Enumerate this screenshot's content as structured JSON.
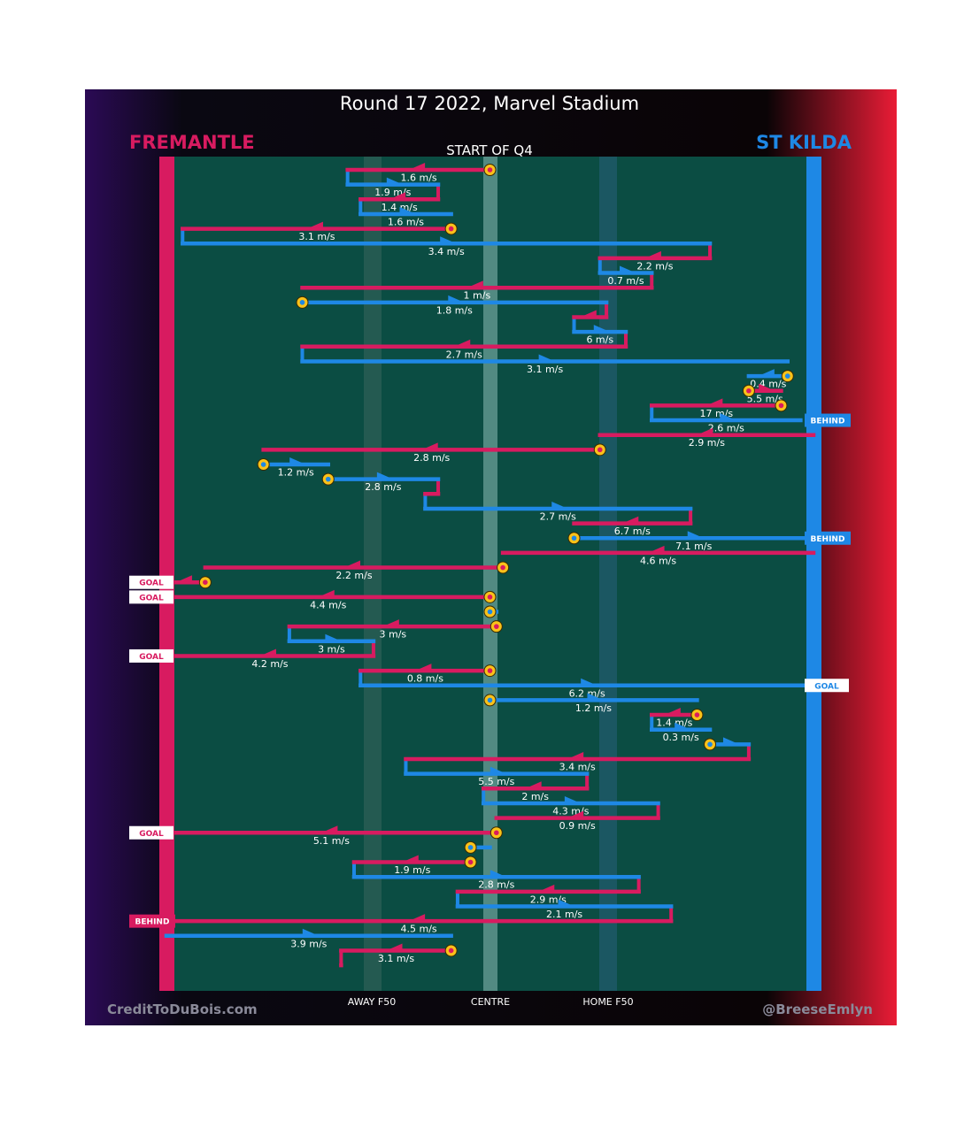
{
  "chart_data": {
    "type": "line",
    "title": "Round 17 2022, Marvel Stadium",
    "subtitle": "START OF Q4",
    "teams": {
      "left": "FREMANTLE",
      "right": "ST KILDA"
    },
    "axis_labels": [
      "AWAY F50",
      "CENTRE",
      "HOME F50"
    ],
    "credits": {
      "left": "CreditToDuBois.com",
      "right": "@BreeseEmlyn"
    },
    "colors": {
      "fremantle": "#d81b60",
      "st_kilda": "#1e88e5",
      "field": "#0b4d43",
      "stoppage": "#f9c21a"
    },
    "x_scale": "position along ground: 0 = Fremantle goal line, 0.5 = centre, 1 = St Kilda goal line",
    "chains": [
      {
        "team": "F",
        "from": 0.5,
        "to": 0.28,
        "speed": "1.6 m/s",
        "start": "stoppage"
      },
      {
        "team": "S",
        "from": 0.28,
        "to": 0.42,
        "speed": "1.9 m/s"
      },
      {
        "team": "F",
        "from": 0.42,
        "to": 0.3,
        "speed": "1.4 m/s"
      },
      {
        "team": "S",
        "from": 0.3,
        "to": 0.44,
        "speed": "1.6 m/s"
      },
      {
        "team": "F",
        "from": 0.44,
        "to": 0.025,
        "speed": "3.1 m/s",
        "start": "stoppage"
      },
      {
        "team": "S",
        "from": 0.025,
        "to": 0.84,
        "speed": "3.4 m/s"
      },
      {
        "team": "F",
        "from": 0.84,
        "to": 0.67,
        "speed": "2.2 m/s"
      },
      {
        "team": "S",
        "from": 0.67,
        "to": 0.75,
        "speed": "0.7 m/s"
      },
      {
        "team": "F",
        "from": 0.75,
        "to": 0.21,
        "speed": "1 m/s"
      },
      {
        "team": "S",
        "from": 0.21,
        "to": 0.68,
        "speed": "1.8 m/s",
        "start": "stoppage"
      },
      {
        "team": "F",
        "from": 0.68,
        "to": 0.63,
        "speed": ""
      },
      {
        "team": "S",
        "from": 0.63,
        "to": 0.71,
        "speed": "6 m/s"
      },
      {
        "team": "F",
        "from": 0.71,
        "to": 0.21,
        "speed": "2.7 m/s"
      },
      {
        "team": "S",
        "from": 0.21,
        "to": 0.96,
        "speed": "3.1 m/s"
      },
      {
        "team": "S",
        "from": 0.96,
        "to": 0.9,
        "speed": "0.4 m/s",
        "start": "stoppage"
      },
      {
        "team": "F",
        "from": 0.9,
        "to": 0.95,
        "speed": "5.5 m/s",
        "start": "stoppage"
      },
      {
        "team": "F",
        "from": 0.95,
        "to": 0.75,
        "speed": "17 m/s",
        "start": "stoppage"
      },
      {
        "team": "S",
        "from": 0.75,
        "to": 0.98,
        "speed": "2.6 m/s",
        "result": "BEHIND"
      },
      {
        "team": "F",
        "from": 1.0,
        "to": 0.67,
        "speed": "2.9 m/s"
      },
      {
        "team": "F",
        "from": 0.67,
        "to": 0.15,
        "speed": "2.8 m/s",
        "start": "stoppage"
      },
      {
        "team": "S",
        "from": 0.15,
        "to": 0.25,
        "speed": "1.2 m/s",
        "start": "stoppage"
      },
      {
        "team": "S",
        "from": 0.25,
        "to": 0.42,
        "speed": "2.8 m/s",
        "start": "stoppage"
      },
      {
        "team": "F",
        "from": 0.42,
        "to": 0.4,
        "speed": ""
      },
      {
        "team": "S",
        "from": 0.4,
        "to": 0.81,
        "speed": "2.7 m/s"
      },
      {
        "team": "F",
        "from": 0.81,
        "to": 0.63,
        "speed": "6.7 m/s"
      },
      {
        "team": "S",
        "from": 0.63,
        "to": 1.0,
        "speed": "7.1 m/s",
        "start": "stoppage",
        "result": "BEHIND"
      },
      {
        "team": "F",
        "from": 1.0,
        "to": 0.52,
        "speed": "4.6 m/s"
      },
      {
        "team": "F",
        "from": 0.52,
        "to": 0.06,
        "speed": "2.2 m/s",
        "start": "stoppage"
      },
      {
        "team": "F",
        "from": 0.06,
        "to": 0.0,
        "speed": "",
        "start": "stoppage",
        "result": "GOAL"
      },
      {
        "team": "F",
        "from": 0.5,
        "to": 0.0,
        "speed": "4.4 m/s",
        "start": "stoppage",
        "result": "GOAL"
      },
      {
        "team": "S",
        "from": 0.5,
        "to": 0.51,
        "speed": "",
        "start": "stoppage"
      },
      {
        "team": "F",
        "from": 0.51,
        "to": 0.19,
        "speed": "3 m/s",
        "start": "stoppage"
      },
      {
        "team": "S",
        "from": 0.19,
        "to": 0.32,
        "speed": "3 m/s"
      },
      {
        "team": "F",
        "from": 0.32,
        "to": 0.0,
        "speed": "4.2 m/s",
        "result": "GOAL"
      },
      {
        "team": "F",
        "from": 0.5,
        "to": 0.3,
        "speed": "0.8 m/s",
        "start": "stoppage"
      },
      {
        "team": "S",
        "from": 0.3,
        "to": 1.0,
        "speed": "6.2 m/s",
        "result": "GOAL"
      },
      {
        "team": "S",
        "from": 0.5,
        "to": 0.82,
        "speed": "1.2 m/s",
        "start": "stoppage"
      },
      {
        "team": "F",
        "from": 0.82,
        "to": 0.75,
        "speed": "1.4 m/s",
        "start": "stoppage"
      },
      {
        "team": "S",
        "from": 0.75,
        "to": 0.84,
        "speed": "0.3 m/s"
      },
      {
        "team": "S",
        "from": 0.84,
        "to": 0.9,
        "speed": "",
        "start": "stoppage"
      },
      {
        "team": "F",
        "from": 0.9,
        "to": 0.37,
        "speed": "3.4 m/s"
      },
      {
        "team": "S",
        "from": 0.37,
        "to": 0.65,
        "speed": "5.5 m/s"
      },
      {
        "team": "F",
        "from": 0.65,
        "to": 0.49,
        "speed": "2 m/s"
      },
      {
        "team": "S",
        "from": 0.49,
        "to": 0.76,
        "speed": "4.3 m/s"
      },
      {
        "team": "F",
        "from": 0.76,
        "to": 0.51,
        "speed": "0.9 m/s"
      },
      {
        "team": "F",
        "from": 0.51,
        "to": 0.0,
        "speed": "5.1 m/s",
        "start": "stoppage",
        "result": "GOAL"
      },
      {
        "team": "S",
        "from": 0.47,
        "to": 0.5,
        "speed": "",
        "start": "stoppage"
      },
      {
        "team": "F",
        "from": 0.47,
        "to": 0.29,
        "speed": "1.9 m/s",
        "start": "stoppage"
      },
      {
        "team": "S",
        "from": 0.29,
        "to": 0.73,
        "speed": "2.8 m/s"
      },
      {
        "team": "F",
        "from": 0.73,
        "to": 0.45,
        "speed": "2.9 m/s"
      },
      {
        "team": "S",
        "from": 0.45,
        "to": 0.78,
        "speed": "2.1 m/s"
      },
      {
        "team": "F",
        "from": 0.78,
        "to": 0.0,
        "speed": "4.5 m/s",
        "result": "BEHIND"
      },
      {
        "team": "S",
        "from": 0.0,
        "to": 0.44,
        "speed": "3.9 m/s"
      },
      {
        "team": "F",
        "from": 0.44,
        "to": 0.27,
        "speed": "3.1 m/s",
        "start": "stoppage"
      },
      {
        "team": "F",
        "from": 0.27,
        "to": 0.27,
        "speed": ""
      }
    ]
  }
}
